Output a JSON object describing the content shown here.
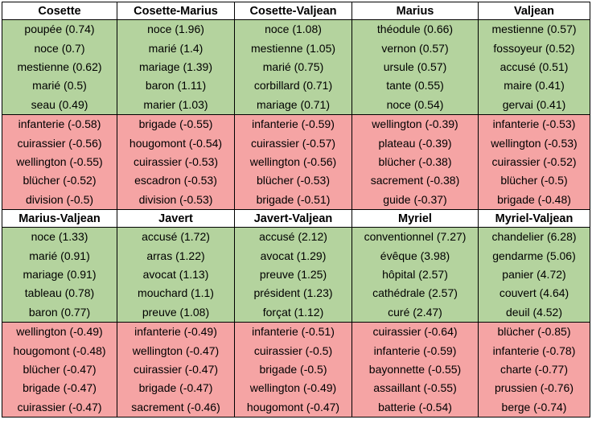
{
  "blocks": [
    {
      "groups": [
        {
          "name": "Cosette",
          "positive": [
            "poupée (0.74)",
            "noce (0.7)",
            "mestienne (0.62)",
            "marié (0.5)",
            "seau (0.49)"
          ],
          "negative": [
            "infanterie (-0.58)",
            "cuirassier (-0.56)",
            "wellington (-0.55)",
            "blücher (-0.52)",
            "division (-0.5)"
          ]
        },
        {
          "name": "Cosette-Marius",
          "positive": [
            "noce (1.96)",
            "marié (1.4)",
            "mariage (1.39)",
            "baron (1.11)",
            "marier (1.03)"
          ],
          "negative": [
            "brigade (-0.55)",
            "hougomont (-0.54)",
            "cuirassier (-0.53)",
            "escadron (-0.53)",
            "division (-0.53)"
          ]
        },
        {
          "name": "Cosette-Valjean",
          "positive": [
            "noce (1.08)",
            "mestienne (1.05)",
            "marié (0.75)",
            "corbillard (0.71)",
            "mariage (0.71)"
          ],
          "negative": [
            "infanterie (-0.59)",
            "cuirassier (-0.57)",
            "wellington (-0.56)",
            "blücher (-0.53)",
            "brigade (-0.51)"
          ]
        },
        {
          "name": "Marius",
          "positive": [
            "théodule (0.66)",
            "vernon (0.57)",
            "ursule (0.57)",
            "tante (0.55)",
            "noce (0.54)"
          ],
          "negative": [
            "wellington (-0.39)",
            "plateau (-0.39)",
            "blücher (-0.38)",
            "sacrement (-0.38)",
            "guide (-0.37)"
          ]
        },
        {
          "name": "Valjean",
          "positive": [
            "mestienne (0.57)",
            "fossoyeur (0.52)",
            "accusé (0.51)",
            "maire (0.41)",
            "gervai (0.41)"
          ],
          "negative": [
            "infanterie (-0.53)",
            "wellington (-0.53)",
            "cuirassier (-0.52)",
            "blücher (-0.5)",
            "brigade (-0.48)"
          ]
        }
      ]
    },
    {
      "groups": [
        {
          "name": "Marius-Valjean",
          "positive": [
            "noce (1.33)",
            "marié (0.91)",
            "mariage (0.91)",
            "tableau (0.78)",
            "baron (0.77)"
          ],
          "negative": [
            "wellington (-0.49)",
            "hougomont (-0.48)",
            "blücher (-0.47)",
            "brigade (-0.47)",
            "cuirassier (-0.47)"
          ]
        },
        {
          "name": "Javert",
          "positive": [
            "accusé (1.72)",
            "arras (1.22)",
            "avocat (1.13)",
            "mouchard (1.1)",
            "preuve (1.08)"
          ],
          "negative": [
            "infanterie (-0.49)",
            "wellington (-0.47)",
            "cuirassier (-0.47)",
            "brigade (-0.47)",
            "sacrement (-0.46)"
          ]
        },
        {
          "name": "Javert-Valjean",
          "positive": [
            "accusé (2.12)",
            "avocat (1.29)",
            "preuve (1.25)",
            "président (1.23)",
            "forçat (1.12)"
          ],
          "negative": [
            "infanterie (-0.51)",
            "cuirassier (-0.5)",
            "brigade (-0.5)",
            "wellington (-0.49)",
            "hougomont (-0.47)"
          ]
        },
        {
          "name": "Myriel",
          "positive": [
            "conventionnel (7.27)",
            "évêque (3.98)",
            "hôpital (2.57)",
            "cathédrale (2.57)",
            "curé (2.47)"
          ],
          "negative": [
            "cuirassier (-0.64)",
            "infanterie (-0.59)",
            "bayonnette (-0.55)",
            "assaillant (-0.55)",
            "batterie (-0.54)"
          ]
        },
        {
          "name": "Myriel-Valjean",
          "positive": [
            "chandelier (6.28)",
            "gendarme (5.06)",
            "panier (4.72)",
            "couvert (4.64)",
            "deuil (4.52)"
          ],
          "negative": [
            "blücher (-0.85)",
            "infanterie (-0.78)",
            "charte (-0.77)",
            "prussien (-0.76)",
            "berge (-0.74)"
          ]
        }
      ]
    }
  ],
  "colors": {
    "positive_bg": "#b4d39e",
    "negative_bg": "#f5a4a4",
    "border": "#000000"
  }
}
